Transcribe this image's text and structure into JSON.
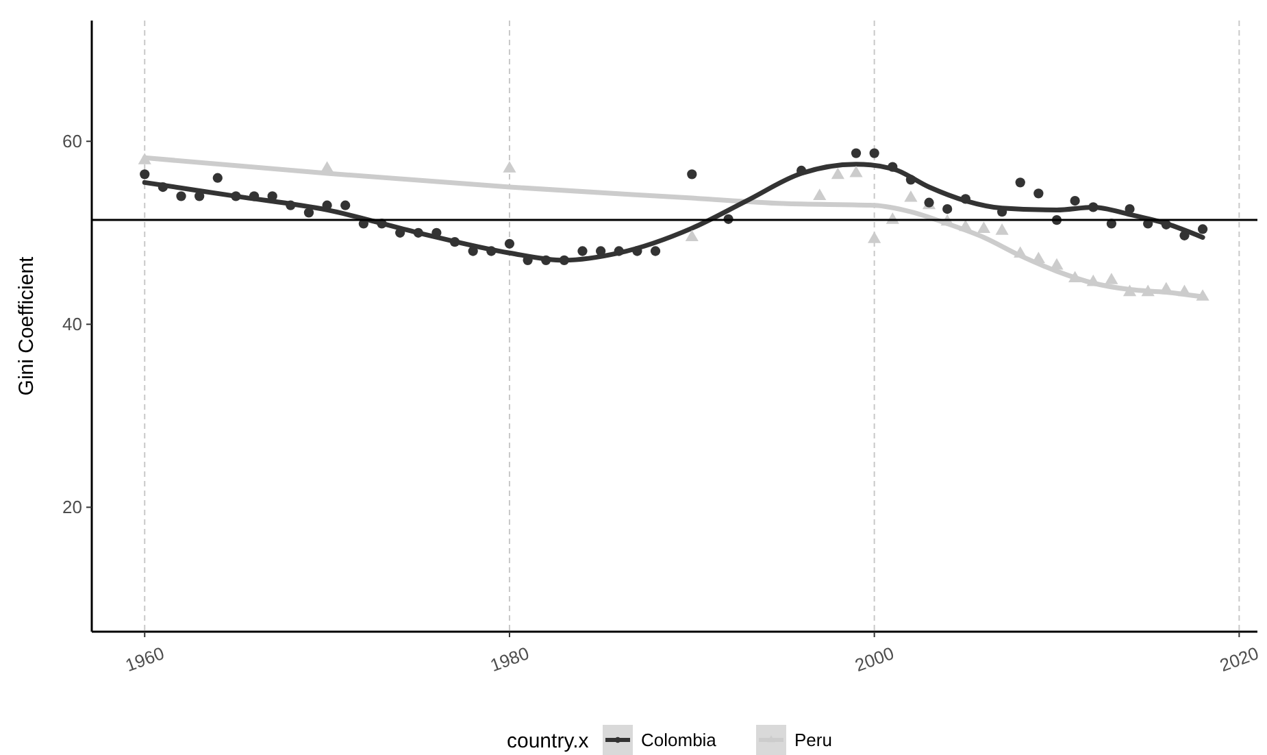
{
  "chart_data": {
    "type": "scatter",
    "ylabel": "Gini Coefficient",
    "legend_title": "country.x",
    "legend": "bottom",
    "grid": "x",
    "xlim": [
      1957.1,
      2021
    ],
    "xticks": [
      1960,
      1980,
      2000,
      2020
    ],
    "ylim": [
      6.4,
      73.2
    ],
    "yticks": [
      20,
      40,
      60
    ],
    "ref_lines": [
      {
        "axis": "y",
        "value": 51.4,
        "color": "#000000"
      }
    ],
    "series": [
      {
        "name": "Colombia",
        "color": "#333333",
        "marker": "circle",
        "x": [
          1960,
          1961,
          1962,
          1963,
          1964,
          1965,
          1966,
          1967,
          1968,
          1969,
          1970,
          1971,
          1972,
          1973,
          1974,
          1975,
          1976,
          1977,
          1978,
          1979,
          1980,
          1981,
          1982,
          1983,
          1984,
          1985,
          1986,
          1987,
          1988,
          1990,
          1992,
          1996,
          1999,
          2000,
          2001,
          2002,
          2003,
          2004,
          2005,
          2007,
          2008,
          2009,
          2010,
          2011,
          2012,
          2013,
          2014,
          2015,
          2016,
          2017,
          2018
        ],
        "values": [
          56.4,
          55,
          54,
          54,
          56,
          54,
          54,
          54,
          53,
          52.2,
          53,
          53,
          51,
          51,
          50,
          50,
          50,
          49,
          48,
          48,
          48.8,
          47,
          47,
          47,
          48,
          48,
          48,
          48,
          48,
          56.4,
          51.5,
          56.8,
          58.7,
          58.7,
          57.2,
          55.8,
          53.3,
          52.6,
          53.7,
          52.3,
          55.5,
          54.3,
          51.4,
          53.5,
          52.8,
          51,
          52.6,
          51,
          50.9,
          49.7,
          50.4
        ]
      },
      {
        "name": "Peru",
        "color": "#cccccc",
        "marker": "triangle",
        "x": [
          1960,
          1970,
          1980,
          1990,
          1997,
          1998,
          1999,
          2000,
          2001,
          2002,
          2003,
          2004,
          2005,
          2006,
          2007,
          2008,
          2009,
          2010,
          2011,
          2012,
          2013,
          2014,
          2015,
          2016,
          2017,
          2018
        ],
        "values": [
          57.9,
          57,
          57,
          49.5,
          54,
          56.3,
          56.5,
          49.3,
          51.4,
          53.8,
          53,
          51.2,
          50.6,
          50.4,
          50.2,
          47.7,
          47.1,
          46.4,
          45,
          44.6,
          44.8,
          43.5,
          43.5,
          43.8,
          43.5,
          43
        ]
      },
      {
        "type": "line",
        "color": "#333333",
        "x": [
          1960,
          1965,
          1970,
          1975,
          1980,
          1983,
          1986,
          1990,
          1993,
          1996,
          1999,
          2001,
          2003,
          2005,
          2007,
          2010,
          2012,
          2014,
          2016,
          2018
        ],
        "values": [
          55.5,
          54,
          52.5,
          50,
          47.8,
          47,
          47.8,
          50.5,
          53.5,
          56.5,
          57.5,
          57,
          55,
          53.5,
          52.7,
          52.5,
          52.8,
          52,
          51,
          49.5
        ]
      },
      {
        "type": "line",
        "color": "#cccccc",
        "x": [
          1960,
          1970,
          1980,
          1990,
          1995,
          2000,
          2002,
          2004,
          2006,
          2008,
          2010,
          2012,
          2014,
          2016,
          2018
        ],
        "values": [
          58.2,
          56.5,
          55,
          53.8,
          53.2,
          53,
          52.3,
          51,
          49.5,
          47.5,
          45.8,
          44.5,
          43.8,
          43.5,
          43
        ]
      }
    ]
  }
}
